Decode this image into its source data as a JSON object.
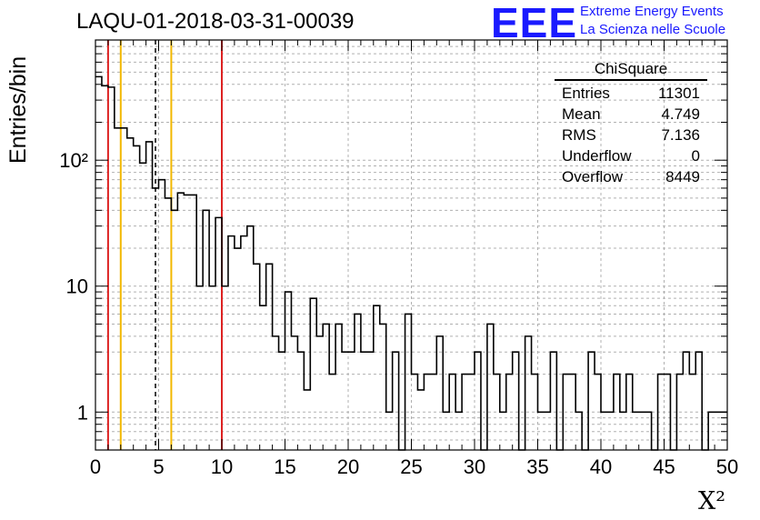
{
  "title": "LAQU-01-2018-03-31-00039",
  "logo": {
    "mark": "EEE",
    "line1": "Extreme Energy Events",
    "line2": "La Scienza nelle Scuole",
    "color": "#1a1aff"
  },
  "stats_box": {
    "name": "ChiSquare",
    "rows": [
      {
        "label": "Entries",
        "value": "11301"
      },
      {
        "label": "Mean",
        "value": "4.749"
      },
      {
        "label": "RMS",
        "value": "7.136"
      },
      {
        "label": "Underflow",
        "value": "0"
      },
      {
        "label": "Overflow",
        "value": "8449"
      }
    ]
  },
  "chart_data": {
    "type": "histogram",
    "title": "LAQU-01-2018-03-31-00039",
    "xlabel": "X²",
    "ylabel": "Entries/bin",
    "xlim": [
      0,
      50
    ],
    "ylim": [
      0.5,
      900
    ],
    "yscale": "log",
    "grid": true,
    "bin_width": 0.5,
    "xticks": [
      "0",
      "5",
      "10",
      "15",
      "20",
      "25",
      "30",
      "35",
      "40",
      "45",
      "50"
    ],
    "yticks": [
      {
        "value": 1,
        "label": "1"
      },
      {
        "value": 10,
        "label": "10"
      },
      {
        "value": 100,
        "label": "10²"
      }
    ],
    "values": [
      460,
      390,
      380,
      180,
      180,
      150,
      130,
      95,
      140,
      60,
      70,
      50,
      40,
      55,
      53,
      53,
      10,
      40,
      10,
      35,
      10,
      25,
      20,
      25,
      30,
      15,
      7,
      15,
      4,
      3,
      9,
      4,
      3,
      1.5,
      8,
      4,
      5,
      2,
      5,
      3,
      3,
      6,
      3,
      3,
      7,
      5,
      1,
      3,
      0,
      6,
      2,
      1.5,
      2,
      2,
      4,
      1,
      2,
      1,
      2,
      2,
      3,
      0,
      5,
      2,
      1,
      2,
      3,
      0,
      4,
      2,
      1,
      1,
      3,
      0,
      2,
      2,
      1,
      0,
      3,
      2,
      1,
      1,
      2,
      1,
      2,
      1,
      1,
      1,
      0,
      2,
      2,
      0,
      2,
      3,
      2,
      3,
      0,
      1,
      1,
      1
    ],
    "vertical_lines": [
      {
        "x": 1,
        "color": "#dd2222",
        "style": "solid"
      },
      {
        "x": 2,
        "color": "#f2b800",
        "style": "solid"
      },
      {
        "x": 4.749,
        "color": "#000000",
        "style": "dashed"
      },
      {
        "x": 6,
        "color": "#f2b800",
        "style": "solid"
      },
      {
        "x": 10,
        "color": "#dd2222",
        "style": "solid"
      }
    ]
  }
}
